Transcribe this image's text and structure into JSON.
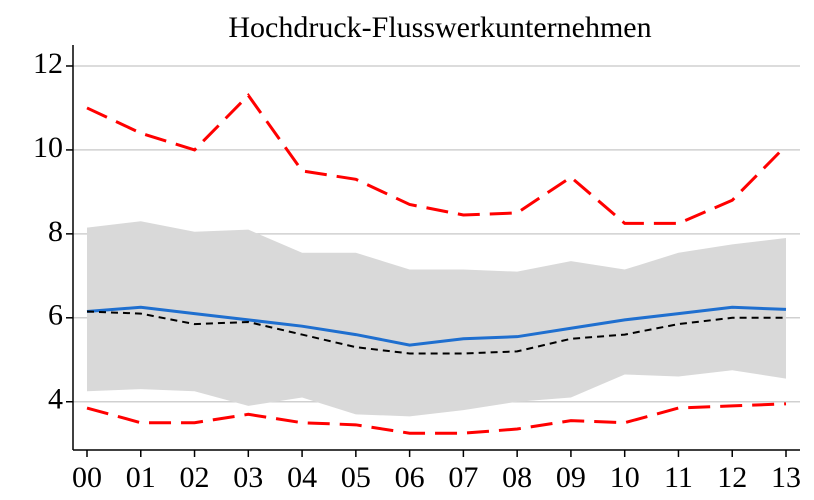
{
  "chart_data": {
    "type": "line",
    "title": "Hochdruck-Flusswerkunternehmen",
    "categories": [
      "00",
      "01",
      "02",
      "03",
      "04",
      "05",
      "06",
      "07",
      "08",
      "09",
      "10",
      "11",
      "12",
      "13"
    ],
    "ylim": [
      2.85,
      12.5
    ],
    "yticks": [
      4,
      6,
      8,
      10,
      12
    ],
    "grid": true,
    "band": {
      "color": "#d9d9d9",
      "upper": [
        8.15,
        8.3,
        8.05,
        8.1,
        7.55,
        7.55,
        7.15,
        7.15,
        7.1,
        7.35,
        7.15,
        7.55,
        7.75,
        7.9
      ],
      "lower": [
        4.25,
        4.3,
        4.25,
        3.9,
        4.1,
        3.7,
        3.65,
        3.8,
        4.0,
        4.1,
        4.65,
        4.6,
        4.75,
        4.55
      ]
    },
    "series": [
      {
        "color": "#ff0000",
        "style": "longdash",
        "values": [
          11.0,
          10.4,
          10.0,
          11.3,
          9.5,
          9.3,
          8.7,
          8.45,
          8.5,
          9.35,
          8.25,
          8.25,
          8.8,
          10.1
        ]
      },
      {
        "color": "#ff0000",
        "style": "longdash",
        "values": [
          3.85,
          3.5,
          3.5,
          3.7,
          3.5,
          3.45,
          3.25,
          3.25,
          3.35,
          3.55,
          3.5,
          3.85,
          3.9,
          3.95
        ]
      },
      {
        "color": "#1f6fcf",
        "style": "solid",
        "values": [
          6.15,
          6.25,
          6.1,
          5.95,
          5.8,
          5.6,
          5.35,
          5.5,
          5.55,
          5.75,
          5.95,
          6.1,
          6.25,
          6.2
        ]
      },
      {
        "color": "#000000",
        "style": "shortdash",
        "values": [
          6.15,
          6.1,
          5.85,
          5.9,
          5.6,
          5.3,
          5.15,
          5.15,
          5.2,
          5.5,
          5.6,
          5.85,
          6.0,
          6.0
        ]
      }
    ]
  }
}
